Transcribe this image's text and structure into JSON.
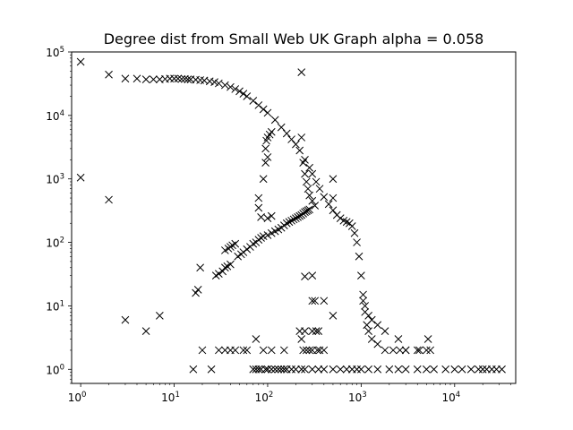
{
  "chart_data": {
    "type": "scatter",
    "title": "Degree dist from Small Web UK Graph alpha = 0.058",
    "xlabel": "",
    "ylabel": "",
    "xscale": "log",
    "yscale": "log",
    "xlim": [
      0.8,
      45000
    ],
    "ylim": [
      0.6,
      100000
    ],
    "grid": false,
    "marker": "x",
    "marker_color": "#000000",
    "xticks": [
      {
        "base": "10",
        "exp": "0",
        "value": 1
      },
      {
        "base": "10",
        "exp": "1",
        "value": 10
      },
      {
        "base": "10",
        "exp": "2",
        "value": 100
      },
      {
        "base": "10",
        "exp": "3",
        "value": 1000
      },
      {
        "base": "10",
        "exp": "4",
        "value": 10000
      }
    ],
    "yticks": [
      {
        "base": "10",
        "exp": "0",
        "value": 1
      },
      {
        "base": "10",
        "exp": "1",
        "value": 10
      },
      {
        "base": "10",
        "exp": "2",
        "value": 100
      },
      {
        "base": "10",
        "exp": "3",
        "value": 1000
      },
      {
        "base": "10",
        "exp": "4",
        "value": 10000
      },
      {
        "base": "10",
        "exp": "5",
        "value": 100000
      }
    ],
    "series": [
      {
        "points": [
          [
            1,
            70000
          ],
          [
            2,
            44000
          ],
          [
            3,
            38000
          ],
          [
            4,
            38000
          ],
          [
            5,
            37000
          ],
          [
            6,
            37000
          ],
          [
            7,
            37000
          ],
          [
            8,
            37500
          ],
          [
            9,
            38000
          ],
          [
            10,
            38000
          ],
          [
            11,
            38000
          ],
          [
            12,
            37500
          ],
          [
            13,
            37500
          ],
          [
            14,
            37000
          ],
          [
            15,
            37000
          ],
          [
            17,
            36500
          ],
          [
            19,
            36000
          ],
          [
            21,
            35500
          ],
          [
            24,
            34500
          ],
          [
            27,
            33500
          ],
          [
            30,
            32000
          ],
          [
            35,
            30000
          ],
          [
            40,
            28000
          ],
          [
            45,
            26000
          ],
          [
            50,
            24000
          ],
          [
            55,
            22000
          ],
          [
            60,
            20000
          ],
          [
            70,
            17000
          ],
          [
            80,
            14500
          ],
          [
            90,
            12500
          ],
          [
            100,
            11000
          ],
          [
            120,
            8500
          ],
          [
            140,
            6500
          ],
          [
            160,
            5200
          ],
          [
            180,
            4200
          ],
          [
            200,
            3500
          ],
          [
            220,
            2800
          ],
          [
            250,
            2000
          ],
          [
            280,
            1500
          ],
          [
            300,
            1200
          ],
          [
            330,
            900
          ],
          [
            360,
            700
          ],
          [
            400,
            520
          ],
          [
            450,
            400
          ],
          [
            500,
            320
          ],
          [
            550,
            270
          ],
          [
            600,
            240
          ],
          [
            650,
            220
          ],
          [
            700,
            210
          ],
          [
            750,
            200
          ],
          [
            800,
            180
          ],
          [
            850,
            140
          ],
          [
            900,
            100
          ],
          [
            950,
            60
          ],
          [
            1000,
            30
          ],
          [
            1050,
            15
          ],
          [
            1100,
            8
          ],
          [
            1150,
            5
          ],
          [
            1200,
            4
          ],
          [
            1300,
            3
          ],
          [
            1500,
            2.5
          ],
          [
            1800,
            2
          ],
          [
            2200,
            2
          ],
          [
            2600,
            2
          ],
          [
            3000,
            2
          ],
          [
            4000,
            2
          ],
          [
            5000,
            2
          ],
          [
            1,
            1050
          ],
          [
            2,
            470
          ],
          [
            3,
            6
          ],
          [
            5,
            4
          ],
          [
            7,
            7
          ],
          [
            17,
            16
          ],
          [
            18,
            18
          ],
          [
            19,
            40
          ],
          [
            16,
            1
          ],
          [
            20,
            2
          ],
          [
            25,
            1
          ],
          [
            28,
            30
          ],
          [
            30,
            32
          ],
          [
            33,
            35
          ],
          [
            35,
            40
          ],
          [
            37,
            42
          ],
          [
            40,
            45
          ],
          [
            35,
            75
          ],
          [
            38,
            80
          ],
          [
            40,
            85
          ],
          [
            42,
            90
          ],
          [
            45,
            95
          ],
          [
            48,
            60
          ],
          [
            52,
            65
          ],
          [
            55,
            70
          ],
          [
            60,
            78
          ],
          [
            65,
            85
          ],
          [
            70,
            95
          ],
          [
            75,
            100
          ],
          [
            80,
            110
          ],
          [
            85,
            118
          ],
          [
            90,
            125
          ],
          [
            100,
            130
          ],
          [
            110,
            140
          ],
          [
            120,
            150
          ],
          [
            130,
            160
          ],
          [
            140,
            170
          ],
          [
            150,
            185
          ],
          [
            160,
            200
          ],
          [
            170,
            210
          ],
          [
            180,
            220
          ],
          [
            190,
            230
          ],
          [
            200,
            240
          ],
          [
            210,
            250
          ],
          [
            220,
            260
          ],
          [
            230,
            270
          ],
          [
            240,
            285
          ],
          [
            250,
            300
          ],
          [
            260,
            310
          ],
          [
            270,
            320
          ],
          [
            280,
            330
          ],
          [
            95,
            3000
          ],
          [
            97,
            4000
          ],
          [
            100,
            4500
          ],
          [
            105,
            5000
          ],
          [
            110,
            5500
          ],
          [
            95,
            1800
          ],
          [
            100,
            2200
          ],
          [
            90,
            1000
          ],
          [
            80,
            500
          ],
          [
            80,
            350
          ],
          [
            85,
            250
          ],
          [
            100,
            240
          ],
          [
            110,
            260
          ],
          [
            230,
            48000
          ],
          [
            230,
            4500
          ],
          [
            240,
            1800
          ],
          [
            250,
            1200
          ],
          [
            260,
            900
          ],
          [
            270,
            700
          ],
          [
            280,
            550
          ],
          [
            300,
            450
          ],
          [
            320,
            380
          ],
          [
            500,
            1000
          ],
          [
            500,
            500
          ],
          [
            250,
            29
          ],
          [
            300,
            30
          ],
          [
            300,
            12
          ],
          [
            320,
            12
          ],
          [
            400,
            12
          ],
          [
            500,
            7
          ],
          [
            220,
            4
          ],
          [
            250,
            4
          ],
          [
            300,
            4
          ],
          [
            330,
            4
          ],
          [
            350,
            4
          ],
          [
            230,
            3
          ],
          [
            240,
            2
          ],
          [
            260,
            2
          ],
          [
            280,
            2
          ],
          [
            300,
            2
          ],
          [
            340,
            2
          ],
          [
            360,
            2
          ],
          [
            400,
            2
          ],
          [
            30,
            2
          ],
          [
            35,
            2
          ],
          [
            40,
            2
          ],
          [
            45,
            2
          ],
          [
            55,
            2
          ],
          [
            60,
            2
          ],
          [
            90,
            2
          ],
          [
            110,
            2
          ],
          [
            150,
            2
          ],
          [
            70,
            1
          ],
          [
            75,
            1
          ],
          [
            80,
            1
          ],
          [
            85,
            1
          ],
          [
            95,
            1
          ],
          [
            100,
            1
          ],
          [
            110,
            1
          ],
          [
            120,
            1
          ],
          [
            130,
            1
          ],
          [
            140,
            1
          ],
          [
            150,
            1
          ],
          [
            160,
            1
          ],
          [
            180,
            1
          ],
          [
            200,
            1
          ],
          [
            230,
            1
          ],
          [
            250,
            1
          ],
          [
            300,
            1
          ],
          [
            350,
            1
          ],
          [
            400,
            1
          ],
          [
            500,
            1
          ],
          [
            600,
            1
          ],
          [
            700,
            1
          ],
          [
            800,
            1
          ],
          [
            900,
            1
          ],
          [
            1000,
            1
          ],
          [
            1200,
            1
          ],
          [
            1500,
            1
          ],
          [
            2000,
            1
          ],
          [
            2500,
            1
          ],
          [
            3000,
            1
          ],
          [
            4000,
            1
          ],
          [
            5000,
            1
          ],
          [
            6000,
            1
          ],
          [
            8000,
            1
          ],
          [
            10000,
            1
          ],
          [
            12000,
            1
          ],
          [
            15000,
            1
          ],
          [
            18000,
            1
          ],
          [
            20000,
            1
          ],
          [
            22000,
            1
          ],
          [
            25000,
            1
          ],
          [
            28000,
            1
          ],
          [
            32000,
            1
          ],
          [
            75,
            3
          ],
          [
            1050,
            12
          ],
          [
            1100,
            10
          ],
          [
            1200,
            7
          ],
          [
            1300,
            6
          ],
          [
            1500,
            5
          ],
          [
            1800,
            4
          ],
          [
            2500,
            3
          ],
          [
            3000,
            2
          ],
          [
            4200,
            2
          ],
          [
            5200,
            3
          ],
          [
            5500,
            2
          ]
        ]
      }
    ]
  }
}
